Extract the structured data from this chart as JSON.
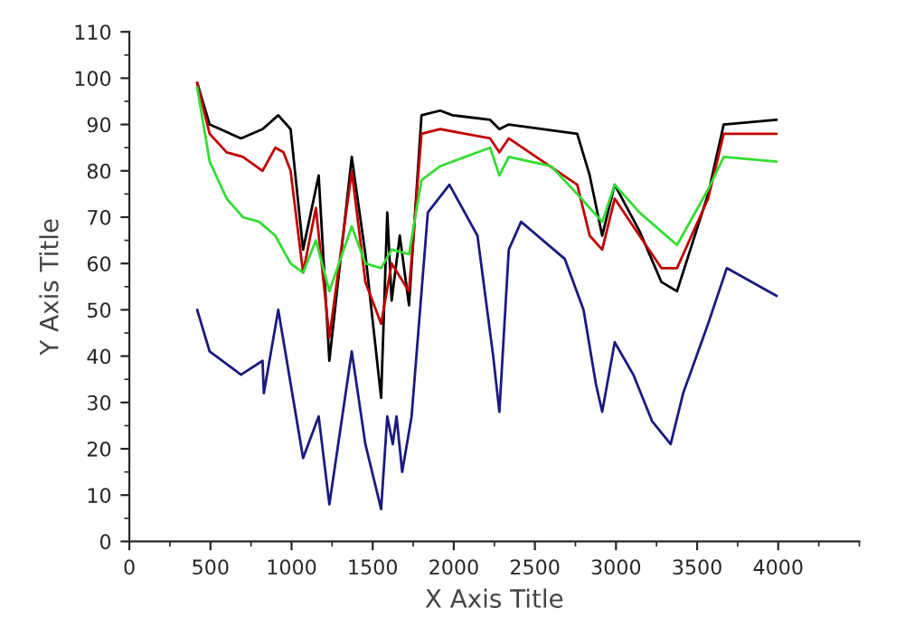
{
  "chart_data": {
    "type": "line",
    "xlabel": "X Axis Title",
    "ylabel": "Y Axis Title",
    "xlim": [
      0,
      4500
    ],
    "xticks": [
      0,
      500,
      1000,
      1500,
      2000,
      2500,
      3000,
      3500,
      4000
    ],
    "ylim": [
      0,
      110
    ],
    "yticks": [
      0,
      10,
      20,
      30,
      40,
      50,
      60,
      70,
      80,
      90,
      100,
      110
    ],
    "grid": false,
    "line_style": "solid",
    "marker": "none",
    "series": [
      {
        "color": "#000000",
        "x": [
          418,
          495,
          688,
          821,
          918,
          994,
          1071,
          1167,
          1233,
          1371,
          1455,
          1552,
          1590,
          1617,
          1667,
          1724,
          1801,
          1916,
          1993,
          2224,
          2281,
          2339,
          2761,
          2838,
          2915,
          2992,
          3145,
          3280,
          3376,
          3568,
          3664,
          3990
        ],
        "values": [
          99,
          90,
          87,
          89,
          92,
          89,
          63,
          79,
          39,
          83,
          62,
          31,
          71,
          52,
          66,
          51,
          92,
          93,
          92,
          91,
          89,
          90,
          88,
          79,
          66,
          77,
          67,
          56,
          54,
          75,
          90,
          91
        ]
      },
      {
        "color": "#c00000",
        "x": [
          418,
          495,
          600,
          700,
          821,
          900,
          950,
          994,
          1071,
          1150,
          1233,
          1371,
          1455,
          1552,
          1617,
          1724,
          1801,
          1916,
          2224,
          2281,
          2339,
          2761,
          2838,
          2915,
          2992,
          3145,
          3280,
          3376,
          3568,
          3664,
          3990
        ],
        "values": [
          99,
          88,
          84,
          83,
          80,
          85,
          84,
          80,
          58,
          72,
          44,
          80,
          56,
          47,
          60,
          54,
          88,
          89,
          87,
          84,
          87,
          77,
          66,
          63,
          74,
          66,
          59,
          59,
          74,
          88,
          88
        ]
      },
      {
        "color": "#33dd33",
        "x": [
          418,
          495,
          600,
          700,
          800,
          900,
          994,
          1071,
          1150,
          1233,
          1371,
          1455,
          1552,
          1617,
          1724,
          1801,
          1916,
          2224,
          2281,
          2339,
          2600,
          2761,
          2838,
          2915,
          2992,
          3145,
          3376,
          3568,
          3664,
          3990
        ],
        "values": [
          98,
          82,
          74,
          70,
          69,
          66,
          60,
          58,
          65,
          54,
          68,
          60,
          59,
          63,
          62,
          78,
          81,
          85,
          79,
          83,
          81,
          75,
          72,
          69,
          77,
          71,
          64,
          76,
          83,
          82
        ]
      },
      {
        "color": "#1a1a80",
        "x": [
          418,
          495,
          688,
          821,
          829,
          918,
          1071,
          1167,
          1233,
          1371,
          1455,
          1552,
          1590,
          1624,
          1647,
          1682,
          1740,
          1840,
          1973,
          2146,
          2243,
          2281,
          2339,
          2415,
          2684,
          2800,
          2876,
          2915,
          2992,
          3107,
          3222,
          3337,
          3414,
          3568,
          3683,
          3990
        ],
        "values": [
          50,
          41,
          36,
          39,
          32,
          50,
          18,
          27,
          8,
          41,
          21,
          7,
          27,
          21,
          27,
          15,
          27,
          71,
          77,
          66,
          40,
          28,
          63,
          69,
          61,
          50,
          34,
          28,
          43,
          36,
          26,
          21,
          32,
          47,
          59,
          53
        ]
      }
    ]
  }
}
